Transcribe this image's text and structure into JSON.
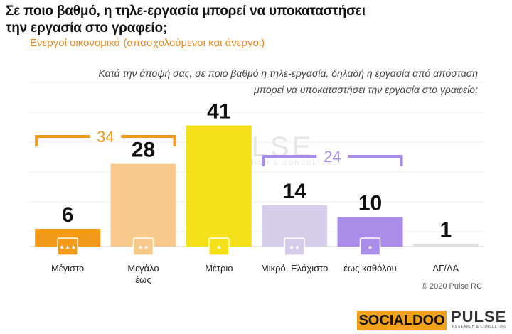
{
  "header": {
    "title": "Σε ποιο βαθμό, η τηλε-εργασία μπορεί να υποκαταστήσει την εργασία στο γραφείο;",
    "subtitle": "Ενεργοί οικονομικά  (απασχολούμενοι και άνεργοι)",
    "question_line1": "Κατά την άποψή σας, σε ποιο βαθμό η τηλε-εργασία, δηλαδή η εργασία από απόσταση",
    "question_line2": "μπορεί να υποκαταστήσει την εργασία στο γραφείο;"
  },
  "chart_data": {
    "type": "bar",
    "categories": [
      "Μέγιστο",
      "Μεγάλο\nέως",
      "Μέτριο",
      "Μικρό, Ελάχιστο",
      "έως καθόλου",
      "ΔΓ/ΔΑ"
    ],
    "values": [
      6,
      28,
      41,
      14,
      10,
      1
    ],
    "colors": [
      "#f39a1a",
      "#f7c98a",
      "#f5e11a",
      "#d6cdea",
      "#a98de8",
      "#e0e0e0"
    ],
    "star_badges": [
      3,
      2,
      1,
      2,
      1,
      0
    ],
    "ylim": [
      0,
      45
    ],
    "groups": [
      {
        "label": "34",
        "from": 0,
        "to": 1,
        "color": "#f39a1a"
      },
      {
        "label": "24",
        "from": 3,
        "to": 4,
        "color": "#a98de8"
      }
    ],
    "grid": true
  },
  "watermark": {
    "text": "PULSE",
    "sub": "RESEARCH & CONSULTING"
  },
  "footer": {
    "copyright": "© 2020 Pulse RC",
    "logo_socialdoo": "SOCIALDOO",
    "logo_pulse": "PULSE",
    "logo_pulse_sub": "RESEARCH & CONSULTING"
  }
}
